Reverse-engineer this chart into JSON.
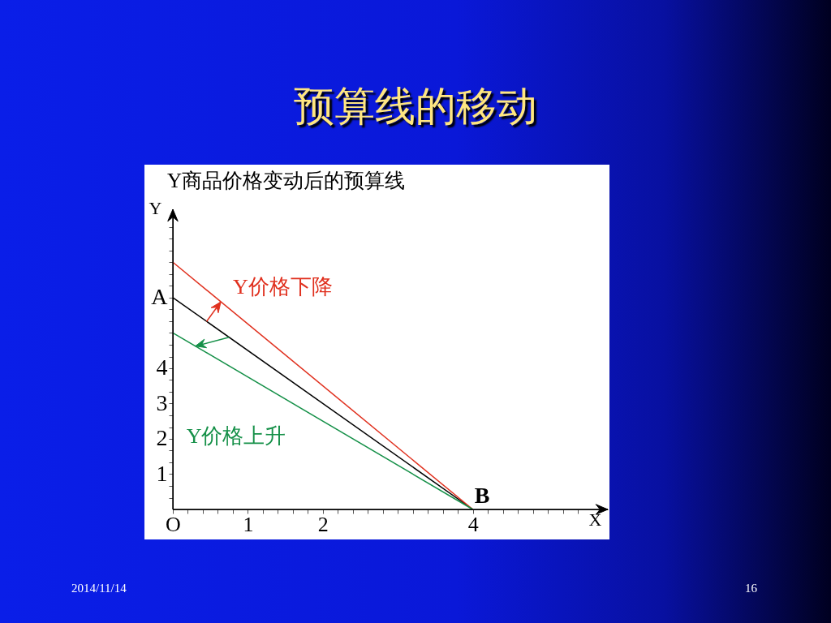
{
  "chart_data": {
    "type": "line",
    "title": "预算线的移动",
    "subtitle": "Y商品价格变动后的预算线",
    "xlabel": "X",
    "ylabel": "Y",
    "x": [
      0,
      4
    ],
    "series": [
      {
        "color": "#000000",
        "values": [
          6,
          0
        ]
      },
      {
        "name": "Y价格下降",
        "color": "#e0301e",
        "values": [
          7,
          0
        ]
      },
      {
        "name": "Y价格上升",
        "color": "#159048",
        "values": [
          5,
          0
        ]
      }
    ],
    "xlim": [
      0,
      5.8
    ],
    "ylim": [
      0,
      8.5
    ],
    "xticks": [
      {
        "value": 0,
        "label": "O"
      },
      {
        "value": 0.2,
        "label": null
      },
      {
        "value": 0.4,
        "label": null
      },
      {
        "value": 0.6,
        "label": null
      },
      {
        "value": 0.8,
        "label": null
      },
      1,
      {
        "value": 1.2,
        "label": null
      },
      {
        "value": 1.4,
        "label": null
      },
      {
        "value": 1.6,
        "label": null
      },
      {
        "value": 1.8,
        "label": null
      },
      2,
      {
        "value": 2.2,
        "label": null
      },
      {
        "value": 2.4,
        "label": null
      },
      {
        "value": 2.6,
        "label": null
      },
      {
        "value": 2.8,
        "label": null
      },
      {
        "value": 3,
        "label": null
      },
      {
        "value": 3.2,
        "label": null
      },
      {
        "value": 3.4,
        "label": null
      },
      {
        "value": 3.6,
        "label": null
      },
      {
        "value": 3.8,
        "label": null
      },
      4,
      {
        "value": 4.2,
        "label": null
      },
      {
        "value": 4.4,
        "label": null
      },
      {
        "value": 4.6,
        "label": null
      },
      {
        "value": 4.8,
        "label": null
      },
      {
        "value": 5,
        "label": null
      },
      {
        "value": 5.2,
        "label": null
      },
      {
        "value": 5.4,
        "label": null
      }
    ],
    "yticks": [
      {
        "value": 0.33,
        "label": null
      },
      {
        "value": 0.67,
        "label": null
      },
      1,
      {
        "value": 1.33,
        "label": null
      },
      {
        "value": 1.67,
        "label": null
      },
      2,
      {
        "value": 2.33,
        "label": null
      },
      {
        "value": 2.67,
        "label": null
      },
      3,
      {
        "value": 3.33,
        "label": null
      },
      {
        "value": 3.67,
        "label": null
      },
      4,
      {
        "value": 4.33,
        "label": null
      },
      {
        "value": 4.67,
        "label": null
      },
      {
        "value": 5,
        "label": null
      },
      {
        "value": 5.33,
        "label": null
      },
      {
        "value": 5.67,
        "label": null
      },
      {
        "value": 6,
        "label": "A"
      },
      {
        "value": 6.33,
        "label": null
      },
      {
        "value": 6.67,
        "label": null
      },
      {
        "value": 7,
        "label": null
      },
      {
        "value": 7.33,
        "label": null
      },
      {
        "value": 7.67,
        "label": null
      },
      {
        "value": 8,
        "label": null
      }
    ],
    "annotations": [
      {
        "text": "B",
        "x": 4,
        "y": 0
      },
      "2014/11/14",
      "16"
    ]
  }
}
